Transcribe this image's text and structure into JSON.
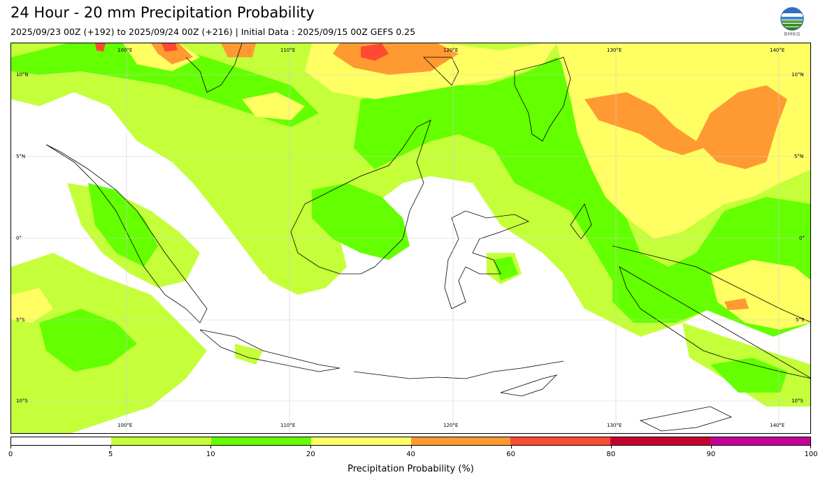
{
  "title": "24 Hour - 20 mm Precipitation Probability",
  "subtitle": "2025/09/23 00Z (+192) to 2025/09/24 00Z (+216) | Initial Data : 2025/09/15 00Z GEFS 0.25",
  "logo": {
    "text": "BMKG",
    "icon": "bmkg-logo-icon"
  },
  "map": {
    "region": "Indonesia",
    "lon_labels": [
      "100°E",
      "110°E",
      "120°E",
      "130°E",
      "140°E"
    ],
    "lat_labels": [
      "10°N",
      "5°N",
      "0°",
      "5°S",
      "10°S"
    ],
    "lon_range": [
      95,
      144
    ],
    "lat_range": [
      -12,
      12
    ],
    "gridlines": true
  },
  "colorbar": {
    "label": "Precipitation Probability (%)",
    "bounds": [
      "0",
      "5",
      "10",
      "20",
      "40",
      "60",
      "80",
      "90",
      "100"
    ],
    "colors": [
      "#ffffff",
      "#c4ff3a",
      "#64ff00",
      "#ffff64",
      "#ff9a32",
      "#ff4a32",
      "#c8002e",
      "#c8009a"
    ]
  }
}
